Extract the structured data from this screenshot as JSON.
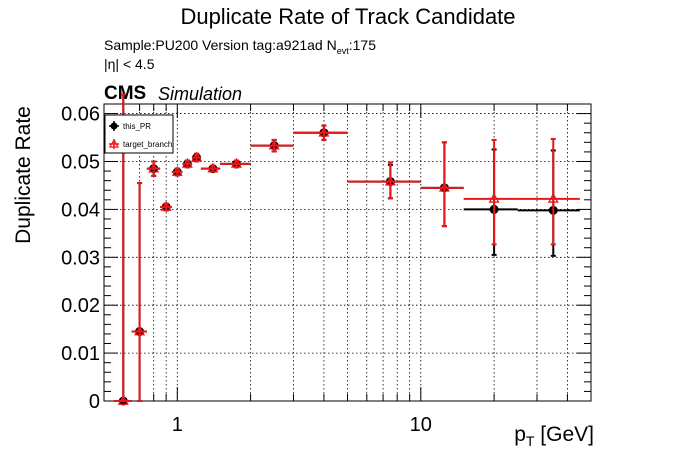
{
  "title": "Duplicate Rate of Track Candidate",
  "info": {
    "line1_prefix": "Sample:PU200   Version tag:a921ad  N",
    "line1_sub": "evt",
    "line1_suffix": ":175",
    "line2": "|η| < 4.5"
  },
  "cms_label": "CMS",
  "simulation_label": "Simulation",
  "chart_data": {
    "type": "scatter",
    "title": "Duplicate Rate of Track Candidate",
    "xlabel_main": "p",
    "xlabel_sub": "T",
    "xlabel_unit": " [GeV]",
    "ylabel": "Duplicate Rate",
    "x_scale": "log",
    "xlim": [
      0.5,
      50
    ],
    "ylim": [
      0,
      0.062
    ],
    "x_ticks": [
      {
        "value": 1,
        "label": "1"
      },
      {
        "value": 10,
        "label": "10"
      }
    ],
    "y_ticks": [
      {
        "value": 0,
        "label": "0"
      },
      {
        "value": 0.01,
        "label": "0.01"
      },
      {
        "value": 0.02,
        "label": "0.02"
      },
      {
        "value": 0.03,
        "label": "0.03"
      },
      {
        "value": 0.04,
        "label": "0.04"
      },
      {
        "value": 0.05,
        "label": "0.05"
      },
      {
        "value": 0.06,
        "label": "0.06"
      }
    ],
    "grid": true,
    "legend_position": "top-left",
    "series": [
      {
        "name": "this_PR",
        "color": "#000000",
        "marker": "circle",
        "points": [
          {
            "x": 0.6,
            "xlo": 0.55,
            "xhi": 0.65,
            "y": 0.0,
            "elo": 0.0,
            "ehi": 0.064
          },
          {
            "x": 0.7,
            "xlo": 0.65,
            "xhi": 0.75,
            "y": 0.0145,
            "elo": 0.0145,
            "ehi": 0.031
          },
          {
            "x": 0.8,
            "xlo": 0.75,
            "xhi": 0.85,
            "y": 0.0485,
            "elo": 0.0015,
            "ehi": 0.0015
          },
          {
            "x": 0.9,
            "xlo": 0.85,
            "xhi": 0.95,
            "y": 0.0405,
            "elo": 0.0007,
            "ehi": 0.0007
          },
          {
            "x": 1.0,
            "xlo": 0.95,
            "xhi": 1.05,
            "y": 0.0478,
            "elo": 0.0007,
            "ehi": 0.0007
          },
          {
            "x": 1.1,
            "xlo": 1.05,
            "xhi": 1.15,
            "y": 0.0495,
            "elo": 0.0007,
            "ehi": 0.0007
          },
          {
            "x": 1.2,
            "xlo": 1.15,
            "xhi": 1.25,
            "y": 0.0508,
            "elo": 0.0008,
            "ehi": 0.0008
          },
          {
            "x": 1.4,
            "xlo": 1.25,
            "xhi": 1.5,
            "y": 0.0485,
            "elo": 0.0006,
            "ehi": 0.0006
          },
          {
            "x": 1.75,
            "xlo": 1.5,
            "xhi": 2.0,
            "y": 0.0495,
            "elo": 0.0007,
            "ehi": 0.0007
          },
          {
            "x": 2.5,
            "xlo": 2.0,
            "xhi": 3.0,
            "y": 0.0533,
            "elo": 0.0012,
            "ehi": 0.0012
          },
          {
            "x": 4.0,
            "xlo": 3.0,
            "xhi": 5.0,
            "y": 0.056,
            "elo": 0.0015,
            "ehi": 0.0015
          },
          {
            "x": 7.5,
            "xlo": 5.0,
            "xhi": 10.0,
            "y": 0.0458,
            "elo": 0.0035,
            "ehi": 0.0035
          },
          {
            "x": 12.5,
            "xlo": 10.0,
            "xhi": 15.0,
            "y": 0.0445,
            "elo": 0.008,
            "ehi": 0.0095
          },
          {
            "x": 20.0,
            "xlo": 15.0,
            "xhi": 25.0,
            "y": 0.04,
            "elo": 0.0095,
            "ehi": 0.0125
          },
          {
            "x": 35.0,
            "xlo": 25.0,
            "xhi": 45.0,
            "y": 0.0398,
            "elo": 0.0095,
            "ehi": 0.0125
          }
        ]
      },
      {
        "name": "target_branch",
        "color": "#e8171b",
        "marker": "triangle",
        "points": [
          {
            "x": 0.6,
            "xlo": 0.55,
            "xhi": 0.65,
            "y": 0.0,
            "elo": 0.0,
            "ehi": 0.064
          },
          {
            "x": 0.7,
            "xlo": 0.65,
            "xhi": 0.75,
            "y": 0.0145,
            "elo": 0.0145,
            "ehi": 0.031
          },
          {
            "x": 0.8,
            "xlo": 0.75,
            "xhi": 0.85,
            "y": 0.0485,
            "elo": 0.0015,
            "ehi": 0.0015
          },
          {
            "x": 0.9,
            "xlo": 0.85,
            "xhi": 0.95,
            "y": 0.0405,
            "elo": 0.0007,
            "ehi": 0.0007
          },
          {
            "x": 1.0,
            "xlo": 0.95,
            "xhi": 1.05,
            "y": 0.0478,
            "elo": 0.0007,
            "ehi": 0.0007
          },
          {
            "x": 1.1,
            "xlo": 1.05,
            "xhi": 1.15,
            "y": 0.0495,
            "elo": 0.0007,
            "ehi": 0.0007
          },
          {
            "x": 1.2,
            "xlo": 1.15,
            "xhi": 1.25,
            "y": 0.0508,
            "elo": 0.0008,
            "ehi": 0.0008
          },
          {
            "x": 1.4,
            "xlo": 1.25,
            "xhi": 1.5,
            "y": 0.0485,
            "elo": 0.0006,
            "ehi": 0.0006
          },
          {
            "x": 1.75,
            "xlo": 1.5,
            "xhi": 2.0,
            "y": 0.0495,
            "elo": 0.0007,
            "ehi": 0.0007
          },
          {
            "x": 2.5,
            "xlo": 2.0,
            "xhi": 3.0,
            "y": 0.0533,
            "elo": 0.0012,
            "ehi": 0.0012
          },
          {
            "x": 4.0,
            "xlo": 3.0,
            "xhi": 5.0,
            "y": 0.056,
            "elo": 0.0015,
            "ehi": 0.0015
          },
          {
            "x": 7.5,
            "xlo": 5.0,
            "xhi": 10.0,
            "y": 0.0458,
            "elo": 0.0035,
            "ehi": 0.004
          },
          {
            "x": 12.5,
            "xlo": 10.0,
            "xhi": 15.0,
            "y": 0.0445,
            "elo": 0.008,
            "ehi": 0.0095
          },
          {
            "x": 20.0,
            "xlo": 15.0,
            "xhi": 25.0,
            "y": 0.0422,
            "elo": 0.0095,
            "ehi": 0.0123
          },
          {
            "x": 35.0,
            "xlo": 25.0,
            "xhi": 45.0,
            "y": 0.0422,
            "elo": 0.0095,
            "ehi": 0.0125
          }
        ]
      }
    ]
  }
}
